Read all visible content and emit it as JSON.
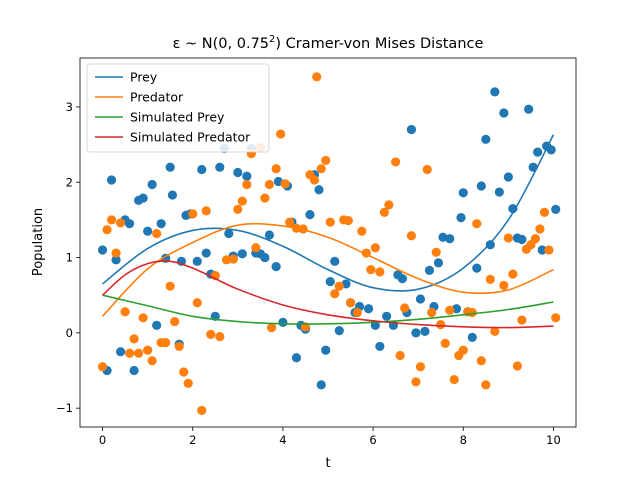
{
  "chart_data": {
    "type": "line",
    "title_prefix": "ε ~ N(0, 0.75",
    "title_sup": "2",
    "title_suffix": ") Cramer-von Mises Distance",
    "xlabel": "t",
    "ylabel": "Population",
    "xlim": [
      -0.5,
      10.5
    ],
    "ylim": [
      -1.25,
      3.65
    ],
    "xticks": [
      0,
      2,
      4,
      6,
      8,
      10
    ],
    "yticks": [
      -1,
      0,
      1,
      2,
      3
    ],
    "ytick_labels": [
      "−1",
      "0",
      "1",
      "2",
      "3"
    ],
    "grid": false,
    "legend_position": "top-left",
    "series": [
      {
        "name": "Prey",
        "color": "#1f77b4",
        "x": [
          0,
          1,
          2,
          3,
          4,
          5,
          6,
          7,
          8,
          9,
          10
        ],
        "y": [
          0.65,
          1.12,
          1.36,
          1.36,
          1.15,
          0.84,
          0.6,
          0.58,
          0.86,
          1.5,
          2.63
        ]
      },
      {
        "name": "Predator",
        "color": "#ff7f0e",
        "x": [
          0,
          1,
          2,
          3,
          4,
          5,
          6,
          7,
          8,
          9,
          10
        ],
        "y": [
          0.22,
          0.85,
          1.2,
          1.43,
          1.42,
          1.27,
          1.0,
          0.72,
          0.54,
          0.57,
          0.84
        ]
      },
      {
        "name": "Simulated Prey",
        "color": "#2ca02c",
        "x": [
          0,
          1,
          2,
          3,
          4,
          5,
          6,
          7,
          8,
          9,
          10
        ],
        "y": [
          0.5,
          0.36,
          0.22,
          0.15,
          0.12,
          0.12,
          0.14,
          0.18,
          0.24,
          0.31,
          0.41
        ]
      },
      {
        "name": "Simulated Predator",
        "color": "#d62728",
        "x": [
          0,
          0.5,
          1,
          1.5,
          2,
          2.5,
          3,
          4,
          5,
          6,
          7,
          8,
          9,
          10
        ],
        "y": [
          0.5,
          0.77,
          0.92,
          0.95,
          0.86,
          0.72,
          0.58,
          0.37,
          0.24,
          0.16,
          0.11,
          0.08,
          0.07,
          0.09
        ]
      }
    ],
    "scatter": [
      {
        "color": "#1f77b4",
        "points": [
          [
            0,
            1.1
          ],
          [
            0.1,
            -0.5
          ],
          [
            0.2,
            2.03
          ],
          [
            0.3,
            0.97
          ],
          [
            0.4,
            -0.25
          ],
          [
            0.5,
            1.5
          ],
          [
            0.6,
            1.45
          ],
          [
            0.7,
            -0.5
          ],
          [
            0.8,
            1.76
          ],
          [
            0.9,
            1.79
          ],
          [
            1,
            1.35
          ],
          [
            1.1,
            1.97
          ],
          [
            1.2,
            0.1
          ],
          [
            1.3,
            1.45
          ],
          [
            1.4,
            0.99
          ],
          [
            1.5,
            2.2
          ],
          [
            1.55,
            1.83
          ],
          [
            1.7,
            -0.15
          ],
          [
            1.75,
            0.95
          ],
          [
            1.85,
            1.56
          ],
          [
            1.95,
            1.58
          ],
          [
            2.1,
            0.95
          ],
          [
            2.2,
            2.17
          ],
          [
            2.3,
            1.06
          ],
          [
            2.4,
            0.78
          ],
          [
            2.5,
            0.22
          ],
          [
            2.6,
            2.2
          ],
          [
            2.7,
            2.45
          ],
          [
            2.8,
            1.32
          ],
          [
            2.9,
            1.02
          ],
          [
            3,
            2.13
          ],
          [
            3.1,
            1.05
          ],
          [
            3.2,
            2.08
          ],
          [
            3.3,
            2.45
          ],
          [
            3.4,
            1.06
          ],
          [
            3.5,
            1.05
          ],
          [
            3.6,
            1.0
          ],
          [
            3.7,
            1.3
          ],
          [
            3.85,
            0.88
          ],
          [
            3.9,
            2.01
          ],
          [
            4,
            0.14
          ],
          [
            4.1,
            1.95
          ],
          [
            4.2,
            1.47
          ],
          [
            4.3,
            -0.33
          ],
          [
            4.4,
            0.1
          ],
          [
            4.5,
            0.05
          ],
          [
            4.6,
            1.57
          ],
          [
            4.7,
            2.1
          ],
          [
            4.8,
            1.9
          ],
          [
            4.85,
            -0.69
          ],
          [
            4.95,
            -0.23
          ],
          [
            5.05,
            0.68
          ],
          [
            5.15,
            0.95
          ],
          [
            5.25,
            0.03
          ],
          [
            5.4,
            0.65
          ],
          [
            5.5,
            0.4
          ],
          [
            5.6,
            0.27
          ],
          [
            5.7,
            0.35
          ],
          [
            5.9,
            0.32
          ],
          [
            6.05,
            0.1
          ],
          [
            6.15,
            -0.18
          ],
          [
            6.3,
            0.22
          ],
          [
            6.45,
            0.1
          ],
          [
            6.55,
            0.77
          ],
          [
            6.65,
            0.72
          ],
          [
            6.75,
            0.27
          ],
          [
            6.85,
            2.7
          ],
          [
            6.95,
            0.0
          ],
          [
            7.05,
            0.45
          ],
          [
            7.15,
            0.02
          ],
          [
            7.25,
            0.83
          ],
          [
            7.35,
            0.35
          ],
          [
            7.45,
            0.93
          ],
          [
            7.55,
            1.27
          ],
          [
            7.7,
            1.25
          ],
          [
            7.85,
            0.32
          ],
          [
            7.95,
            1.53
          ],
          [
            8,
            1.86
          ],
          [
            8.1,
            0.28
          ],
          [
            8.2,
            -0.06
          ],
          [
            8.3,
            0.86
          ],
          [
            8.4,
            1.95
          ],
          [
            8.5,
            2.57
          ],
          [
            8.6,
            1.17
          ],
          [
            8.7,
            3.2
          ],
          [
            8.8,
            1.87
          ],
          [
            8.9,
            2.92
          ],
          [
            9,
            2.07
          ],
          [
            9.1,
            1.65
          ],
          [
            9.2,
            1.26
          ],
          [
            9.3,
            1.24
          ],
          [
            9.45,
            2.97
          ],
          [
            9.55,
            2.2
          ],
          [
            9.65,
            2.4
          ],
          [
            9.75,
            1.1
          ],
          [
            9.85,
            2.48
          ],
          [
            9.95,
            2.43
          ],
          [
            10.05,
            1.64
          ]
        ]
      },
      {
        "color": "#ff7f0e",
        "points": [
          [
            0,
            -0.45
          ],
          [
            0.1,
            1.37
          ],
          [
            0.2,
            1.5
          ],
          [
            0.3,
            1.06
          ],
          [
            0.4,
            1.46
          ],
          [
            0.5,
            0.28
          ],
          [
            0.6,
            -0.27
          ],
          [
            0.7,
            -0.08
          ],
          [
            0.8,
            -0.27
          ],
          [
            0.9,
            0.2
          ],
          [
            1,
            -0.23
          ],
          [
            1.1,
            -0.37
          ],
          [
            1.2,
            1.32
          ],
          [
            1.3,
            -0.13
          ],
          [
            1.4,
            -0.13
          ],
          [
            1.5,
            0.62
          ],
          [
            1.6,
            0.15
          ],
          [
            1.7,
            -0.18
          ],
          [
            1.8,
            -0.52
          ],
          [
            1.9,
            -0.67
          ],
          [
            2,
            1.58
          ],
          [
            2.1,
            0.4
          ],
          [
            2.2,
            -1.03
          ],
          [
            2.3,
            1.62
          ],
          [
            2.4,
            -0.02
          ],
          [
            2.5,
            0.76
          ],
          [
            2.6,
            -0.05
          ],
          [
            2.75,
            0.97
          ],
          [
            2.9,
            0.98
          ],
          [
            3.0,
            1.64
          ],
          [
            3.1,
            1.75
          ],
          [
            3.2,
            1.97
          ],
          [
            3.3,
            2.38
          ],
          [
            3.4,
            1.13
          ],
          [
            3.5,
            2.46
          ],
          [
            3.6,
            1.79
          ],
          [
            3.7,
            1.97
          ],
          [
            3.75,
            0.07
          ],
          [
            3.85,
            2.18
          ],
          [
            3.95,
            2.64
          ],
          [
            4.05,
            1.98
          ],
          [
            4.15,
            1.47
          ],
          [
            4.3,
            1.39
          ],
          [
            4.45,
            1.38
          ],
          [
            4.5,
            0.08
          ],
          [
            4.6,
            2.1
          ],
          [
            4.7,
            2.03
          ],
          [
            4.75,
            3.4
          ],
          [
            4.85,
            2.18
          ],
          [
            4.95,
            2.29
          ],
          [
            5.05,
            1.47
          ],
          [
            5.15,
            0.52
          ],
          [
            5.25,
            0.62
          ],
          [
            5.35,
            1.5
          ],
          [
            5.45,
            1.49
          ],
          [
            5.5,
            0.4
          ],
          [
            5.65,
            0.27
          ],
          [
            5.75,
            1.35
          ],
          [
            5.85,
            1.06
          ],
          [
            5.95,
            0.84
          ],
          [
            6.05,
            1.13
          ],
          [
            6.15,
            0.81
          ],
          [
            6.25,
            1.6
          ],
          [
            6.35,
            1.7
          ],
          [
            6.5,
            2.27
          ],
          [
            6.6,
            -0.3
          ],
          [
            6.7,
            0.33
          ],
          [
            6.85,
            1.29
          ],
          [
            6.95,
            -0.65
          ],
          [
            7.05,
            -0.45
          ],
          [
            7.2,
            2.17
          ],
          [
            7.3,
            0.27
          ],
          [
            7.4,
            1.07
          ],
          [
            7.5,
            0.11
          ],
          [
            7.6,
            -0.14
          ],
          [
            7.7,
            0.3
          ],
          [
            7.8,
            -0.62
          ],
          [
            7.9,
            -0.3
          ],
          [
            8,
            -0.23
          ],
          [
            8.1,
            0.28
          ],
          [
            8.2,
            0.27
          ],
          [
            8.3,
            1.45
          ],
          [
            8.4,
            -0.37
          ],
          [
            8.5,
            -0.69
          ],
          [
            8.6,
            0.71
          ],
          [
            8.7,
            0.02
          ],
          [
            8.9,
            0.63
          ],
          [
            9.0,
            1.26
          ],
          [
            9.1,
            0.78
          ],
          [
            9.2,
            -0.44
          ],
          [
            9.3,
            0.17
          ],
          [
            9.4,
            1.11
          ],
          [
            9.5,
            1.17
          ],
          [
            9.6,
            1.25
          ],
          [
            9.7,
            1.38
          ],
          [
            9.8,
            1.6
          ],
          [
            9.9,
            1.1
          ],
          [
            10.05,
            0.2
          ]
        ]
      }
    ]
  }
}
